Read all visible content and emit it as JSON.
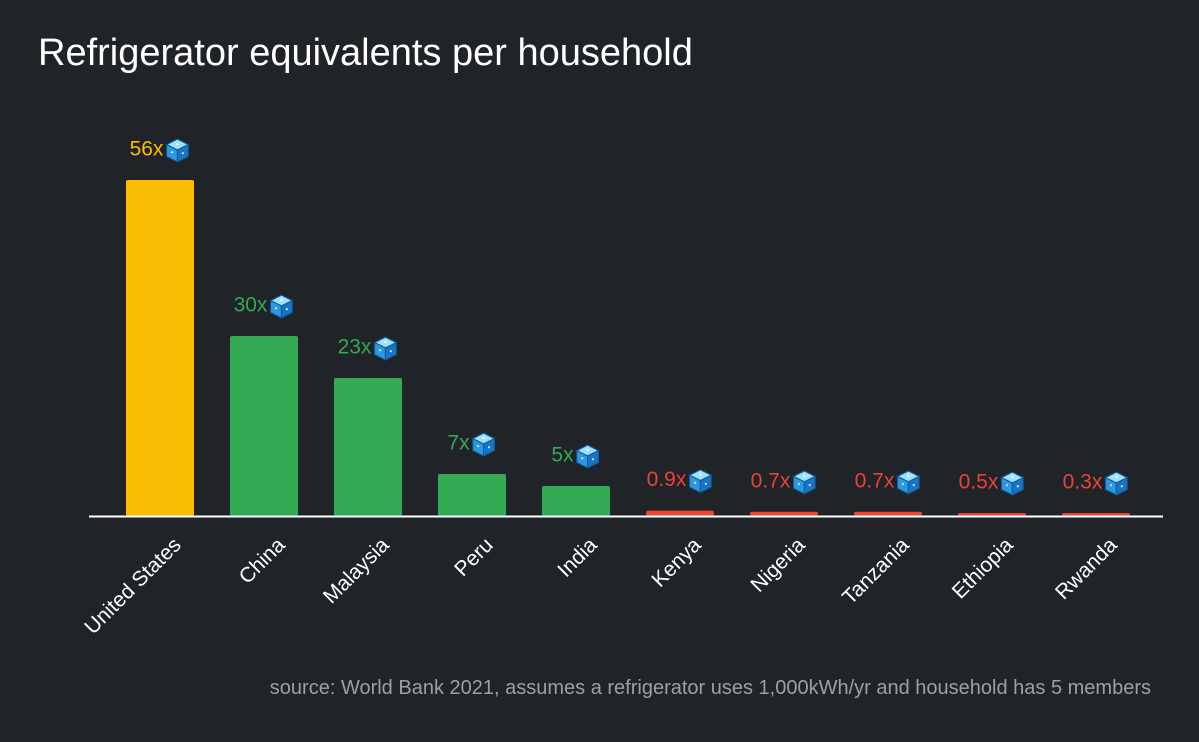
{
  "chart_data": {
    "type": "bar",
    "title": "Refrigerator equivalents per household",
    "xlabel": "",
    "ylabel": "",
    "ylim": [
      0,
      56
    ],
    "grid": false,
    "legend": "none",
    "label_icon": "ice-cube-icon",
    "categories": [
      "United States",
      "China",
      "Malaysia",
      "Peru",
      "India",
      "Kenya",
      "Nigeria",
      "Tanzania",
      "Ethiopia",
      "Rwanda"
    ],
    "values": [
      56,
      30,
      23,
      7,
      5,
      0.9,
      0.7,
      0.7,
      0.5,
      0.3
    ],
    "data_labels": [
      "56x",
      "30x",
      "23x",
      "7x",
      "5x",
      "0.9x",
      "0.7x",
      "0.7x",
      "0.5x",
      "0.3x"
    ],
    "bar_colors": [
      "#fbbc04",
      "#34a853",
      "#34a853",
      "#34a853",
      "#34a853",
      "#ea4335",
      "#ea4335",
      "#ea4335",
      "#ea4335",
      "#ea4335"
    ]
  },
  "source": "source: World Bank 2021, assumes a refrigerator uses 1,000kWh/yr and household has 5 members"
}
